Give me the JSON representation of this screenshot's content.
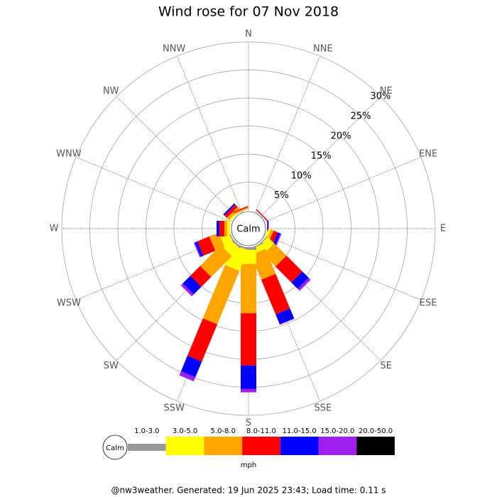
{
  "chart_data": {
    "type": "windrose",
    "title": "Wind rose for 07 Nov 2018",
    "calm_label": "Calm",
    "unit": "mph",
    "footer": "@nw3weather. Generated: 19 Jun 2025 23:43; Load time: 0.11 s",
    "categories": [
      "N",
      "NNE",
      "NE",
      "ENE",
      "E",
      "ESE",
      "SE",
      "SSE",
      "S",
      "SSW",
      "SW",
      "WSW",
      "W",
      "WNW",
      "NW",
      "NNW"
    ],
    "ylim": [
      0,
      30
    ],
    "yticks": [
      {
        "value": 5,
        "label": "5%"
      },
      {
        "value": 10,
        "label": "10%"
      },
      {
        "value": 15,
        "label": "15%"
      },
      {
        "value": 20,
        "label": "20%"
      },
      {
        "value": 25,
        "label": "25%"
      },
      {
        "value": 30,
        "label": "30%"
      }
    ],
    "series": [
      {
        "name": "1.0-3.0",
        "color": "#999999",
        "values": [
          0,
          0,
          0,
          0,
          0,
          0,
          0.2,
          0.2,
          0.5,
          0.3,
          0.3,
          0.2,
          0,
          0,
          0,
          0
        ]
      },
      {
        "name": "3.0-5.0",
        "color": "#ffff00",
        "values": [
          0,
          0,
          0,
          0,
          0,
          0.5,
          1.6,
          1.0,
          2.5,
          4.0,
          2.0,
          1.7,
          0.5,
          0,
          0.3,
          0
        ]
      },
      {
        "name": "5.0-8.0",
        "color": "#ffa500",
        "values": [
          0,
          0,
          0,
          0,
          0,
          0.5,
          3.1,
          4.8,
          8.8,
          10.3,
          5.2,
          1.8,
          0.5,
          0,
          0.5,
          0.3
        ]
      },
      {
        "name": "8.0-11.0",
        "color": "#ff0000",
        "values": [
          0,
          0,
          0.2,
          0,
          0.1,
          0.8,
          4.0,
          6.7,
          9.3,
          7.2,
          2.5,
          2.3,
          0.9,
          0,
          0.6,
          0.2
        ]
      },
      {
        "name": "11.0-15.0",
        "color": "#0000ff",
        "values": [
          0,
          0,
          0,
          0,
          0.2,
          0.5,
          1.6,
          1.9,
          4.2,
          3.0,
          1.9,
          0.5,
          0.5,
          0,
          0.3,
          0
        ]
      },
      {
        "name": "15.0-20.0",
        "color": "#a020f0",
        "values": [
          0,
          0,
          0,
          0,
          0,
          0.2,
          0.5,
          0.1,
          0.6,
          0.8,
          0.5,
          0.2,
          0,
          0,
          0,
          0
        ]
      },
      {
        "name": "20.0-50.0",
        "color": "#000000",
        "values": [
          0,
          0,
          0,
          0,
          0,
          0,
          0,
          0,
          0,
          0,
          0,
          0,
          0,
          0,
          0,
          0
        ]
      }
    ]
  }
}
